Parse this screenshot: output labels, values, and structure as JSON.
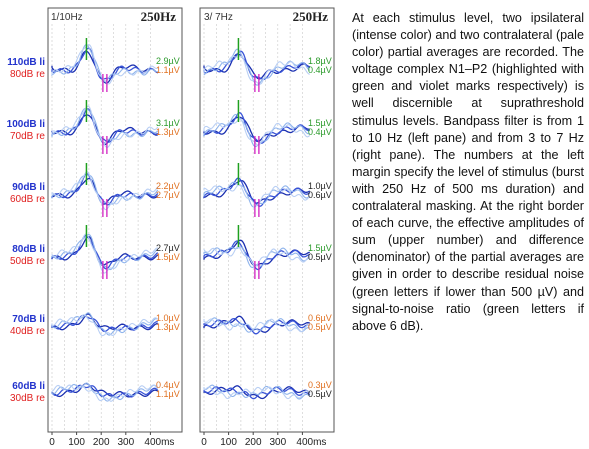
{
  "figure": {
    "left_panel": {
      "filter": "1/10Hz",
      "frequency": "250Hz",
      "x_ticks": [
        "0",
        "100",
        "200",
        "300",
        "400ms"
      ]
    },
    "right_panel": {
      "filter": "3/ 7Hz",
      "frequency": "250Hz",
      "x_ticks": [
        "0",
        "100",
        "200",
        "300",
        "400ms"
      ]
    },
    "rows": [
      {
        "ipsi": "110dB li",
        "contra": "80dB re",
        "left_values": [
          "2.9µV",
          "1.1µV"
        ],
        "left_colors": [
          "#2a9a2a",
          "#e07020"
        ],
        "right_values": [
          "1.8µV",
          "0.4µV"
        ],
        "right_colors": [
          "#2a9a2a",
          "#2a9a2a"
        ],
        "amp": 1.0
      },
      {
        "ipsi": "100dB li",
        "contra": "70dB re",
        "left_values": [
          "3.1µV",
          "1.3µV"
        ],
        "left_colors": [
          "#2a9a2a",
          "#e07020"
        ],
        "right_values": [
          "1.5µV",
          "0.4µV"
        ],
        "right_colors": [
          "#2a9a2a",
          "#2a9a2a"
        ],
        "amp": 0.95
      },
      {
        "ipsi": "90dB li",
        "contra": "60dB re",
        "left_values": [
          "2.2µV",
          "2.7µV"
        ],
        "left_colors": [
          "#e07020",
          "#e07020"
        ],
        "right_values": [
          "1.0µV",
          "0.6µV"
        ],
        "right_colors": [
          "#222222",
          "#222222"
        ],
        "amp": 0.8
      },
      {
        "ipsi": "80dB li",
        "contra": "50dB re",
        "left_values": [
          "2.7µV",
          "1.5µV"
        ],
        "left_colors": [
          "#222222",
          "#e07020"
        ],
        "right_values": [
          "1.5µV",
          "0.5µV"
        ],
        "right_colors": [
          "#2a9a2a",
          "#222222"
        ],
        "amp": 0.85
      },
      {
        "ipsi": "70dB li",
        "contra": "40dB re",
        "left_values": [
          "1.0µV",
          "1.3µV"
        ],
        "left_colors": [
          "#e07020",
          "#e07020"
        ],
        "right_values": [
          "0.6µV",
          "0.5µV"
        ],
        "right_colors": [
          "#e07020",
          "#e07020"
        ],
        "amp": 0.35
      },
      {
        "ipsi": "60dB li",
        "contra": "30dB re",
        "left_values": [
          "0.4µV",
          "1.1µV"
        ],
        "left_colors": [
          "#e07020",
          "#e07020"
        ],
        "right_values": [
          "0.3µV",
          "0.5µV"
        ],
        "right_colors": [
          "#e07020",
          "#222222"
        ],
        "amp": 0.2
      }
    ]
  },
  "caption": "At each stimulus level, two ipsilateral (intense color) and two contralateral (pale color) partial averages are recorded. The voltage complex N1–P2 (highlighted with green and violet marks respectively) is well discernible at suprathreshold stimulus levels. Bandpass filter is from 1 to 10 Hz (left pane) and from 3 to 7 Hz (right pane). The numbers at the left margin specify the level of stimulus (burst with 250 Hz of 500 ms duration) and contralateral masking. At the right border of each curve, the effective amplitudes of sum (upper number) and difference (denominator) of the partial averages are given in order to describe residual noise (green letters if lower than 500 µV) and signal-to-noise ratio (green letters if above 6 dB)."
}
